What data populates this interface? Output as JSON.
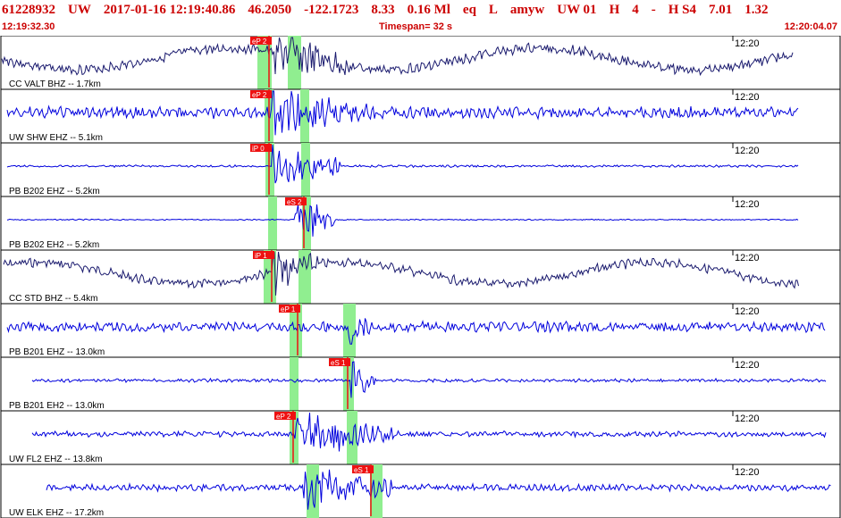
{
  "header": {
    "event_id": "61228932",
    "network": "UW",
    "datetime": "2017-01-16 12:19:40.86",
    "latitude": "46.2050",
    "longitude": "-122.1723",
    "depth": "8.33",
    "magnitude": "0.16 Ml",
    "event_type": "eq",
    "flag": "L",
    "analyst": "amyw",
    "source": "UW 01",
    "quality": "H",
    "phase_count": "4",
    "separator": "-",
    "code": "H S4",
    "value_a": "7.01",
    "value_b": "1.32"
  },
  "time_bar": {
    "start": "12:19:32.30",
    "timespan": "Timespan=  32 s",
    "end": "12:20:04.07"
  },
  "colors": {
    "header_text": "#cc0000",
    "trace_blue": "#0000dd",
    "trace_navy": "#1a1a6e",
    "pick_box": "#ee1111",
    "window_green": "#90ee90",
    "frame": "#000000"
  },
  "traces": [
    {
      "label": "CC VALT BHZ -- 1.7km",
      "time_mark": "12:20",
      "color": "trace_navy",
      "picks": [
        {
          "text": "eP 2",
          "t": 0.3
        }
      ]
    },
    {
      "label": "UW SHW EHZ -- 5.1km",
      "time_mark": "12:20",
      "color": "trace_blue",
      "picks": [
        {
          "text": "eP 2",
          "t": 0.3
        }
      ]
    },
    {
      "label": "PB B202 EHZ -- 5.2km",
      "time_mark": "12:20",
      "color": "trace_blue",
      "picks": [
        {
          "text": "iP 0",
          "t": 0.3
        }
      ]
    },
    {
      "label": "PB B202 EH2 -- 5.2km",
      "time_mark": "12:20",
      "color": "trace_blue",
      "picks": [
        {
          "text": "eS 2",
          "t": 0.5
        }
      ]
    },
    {
      "label": "CC STD BHZ -- 5.4km",
      "time_mark": "12:20",
      "color": "trace_navy",
      "picks": [
        {
          "text": "iP 1",
          "t": 0.4
        }
      ]
    },
    {
      "label": "PB B201 EHZ -- 13.0km",
      "time_mark": "12:20",
      "color": "trace_blue",
      "picks": [
        {
          "text": "eP 1",
          "t": 1.0
        }
      ]
    },
    {
      "label": "PB B201 EH2 -- 13.0km",
      "time_mark": "12:20",
      "color": "trace_blue",
      "picks": [
        {
          "text": "eS 1",
          "t": 2.6
        }
      ]
    },
    {
      "label": "UW FL2 EHZ -- 13.8km",
      "time_mark": "12:20",
      "color": "trace_blue",
      "picks": [
        {
          "text": "eP 2",
          "t": 1.0
        }
      ]
    },
    {
      "label": "UW ELK EHZ -- 17.2km",
      "time_mark": "12:20",
      "color": "trace_blue",
      "picks": [
        {
          "text": "eS 1",
          "t": 3.3
        }
      ]
    }
  ]
}
